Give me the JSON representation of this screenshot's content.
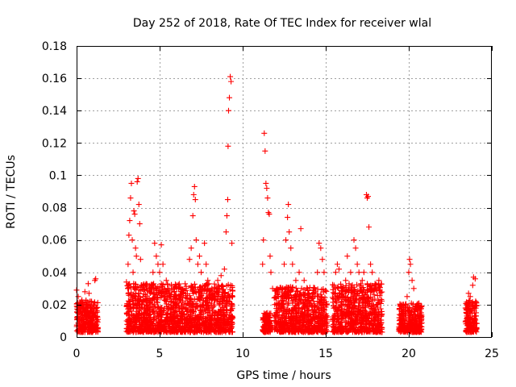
{
  "chart_data": {
    "type": "scatter",
    "title": "Day 252 of 2018, Rate Of TEC Index for receiver wlal",
    "xlabel": "GPS time / hours",
    "ylabel": "ROTI / TECUs",
    "xlim": [
      0,
      25
    ],
    "ylim": [
      0,
      0.18
    ],
    "x_ticks": [
      0,
      5,
      10,
      15,
      20,
      25
    ],
    "y_ticks": [
      0,
      0.02,
      0.04,
      0.06,
      0.08,
      0.1,
      0.12,
      0.14,
      0.16,
      0.18
    ],
    "x_tick_labels": [
      "0",
      "5",
      "10",
      "15",
      "20",
      "25"
    ],
    "y_tick_labels": [
      "0",
      "0.02",
      "0.04",
      "0.06",
      "0.08",
      "0.1",
      "0.12",
      "0.14",
      "0.16",
      "0.18"
    ],
    "grid": true,
    "marker": "+",
    "color": "#ff0000",
    "series": [
      {
        "name": "ROTI",
        "points": [
          [
            0.0,
            0.029
          ],
          [
            0.1,
            0.025
          ],
          [
            0.2,
            0.015
          ],
          [
            0.25,
            0.012
          ],
          [
            0.3,
            0.022
          ],
          [
            0.4,
            0.018
          ],
          [
            0.5,
            0.028
          ],
          [
            0.55,
            0.02
          ],
          [
            0.6,
            0.016
          ],
          [
            0.7,
            0.033
          ],
          [
            0.75,
            0.027
          ],
          [
            0.8,
            0.022
          ],
          [
            0.9,
            0.016
          ],
          [
            1.0,
            0.012
          ],
          [
            1.05,
            0.02
          ],
          [
            1.1,
            0.035
          ],
          [
            1.15,
            0.036
          ],
          [
            1.2,
            0.018
          ],
          [
            3.0,
            0.034
          ],
          [
            3.1,
            0.045
          ],
          [
            3.15,
            0.063
          ],
          [
            3.2,
            0.072
          ],
          [
            3.25,
            0.086
          ],
          [
            3.3,
            0.095
          ],
          [
            3.35,
            0.06
          ],
          [
            3.4,
            0.04
          ],
          [
            3.45,
            0.078
          ],
          [
            3.5,
            0.076
          ],
          [
            3.55,
            0.055
          ],
          [
            3.6,
            0.05
          ],
          [
            3.65,
            0.096
          ],
          [
            3.7,
            0.098
          ],
          [
            3.75,
            0.082
          ],
          [
            3.8,
            0.07
          ],
          [
            3.85,
            0.048
          ],
          [
            3.9,
            0.032
          ],
          [
            4.0,
            0.025
          ],
          [
            4.2,
            0.02
          ],
          [
            4.4,
            0.028
          ],
          [
            4.6,
            0.04
          ],
          [
            4.7,
            0.058
          ],
          [
            4.8,
            0.05
          ],
          [
            4.9,
            0.045
          ],
          [
            5.0,
            0.04
          ],
          [
            5.1,
            0.057
          ],
          [
            5.2,
            0.045
          ],
          [
            5.3,
            0.03
          ],
          [
            5.4,
            0.035
          ],
          [
            5.5,
            0.03
          ],
          [
            6.0,
            0.02
          ],
          [
            6.3,
            0.025
          ],
          [
            6.6,
            0.03
          ],
          [
            6.8,
            0.048
          ],
          [
            6.9,
            0.055
          ],
          [
            7.0,
            0.075
          ],
          [
            7.05,
            0.088
          ],
          [
            7.1,
            0.093
          ],
          [
            7.15,
            0.085
          ],
          [
            7.2,
            0.06
          ],
          [
            7.3,
            0.045
          ],
          [
            7.4,
            0.05
          ],
          [
            7.5,
            0.04
          ],
          [
            7.6,
            0.03
          ],
          [
            7.7,
            0.058
          ],
          [
            7.8,
            0.045
          ],
          [
            7.9,
            0.035
          ],
          [
            8.0,
            0.028
          ],
          [
            8.3,
            0.025
          ],
          [
            8.5,
            0.035
          ],
          [
            8.7,
            0.038
          ],
          [
            8.9,
            0.042
          ],
          [
            9.0,
            0.065
          ],
          [
            9.05,
            0.075
          ],
          [
            9.1,
            0.085
          ],
          [
            9.12,
            0.118
          ],
          [
            9.15,
            0.14
          ],
          [
            9.2,
            0.148
          ],
          [
            9.25,
            0.161
          ],
          [
            9.3,
            0.158
          ],
          [
            9.35,
            0.058
          ],
          [
            11.2,
            0.045
          ],
          [
            11.25,
            0.06
          ],
          [
            11.3,
            0.126
          ],
          [
            11.35,
            0.115
          ],
          [
            11.4,
            0.095
          ],
          [
            11.45,
            0.092
          ],
          [
            11.5,
            0.086
          ],
          [
            11.55,
            0.077
          ],
          [
            11.6,
            0.076
          ],
          [
            11.65,
            0.05
          ],
          [
            11.7,
            0.04
          ],
          [
            11.8,
            0.03
          ],
          [
            12.2,
            0.02
          ],
          [
            12.5,
            0.045
          ],
          [
            12.6,
            0.06
          ],
          [
            12.7,
            0.074
          ],
          [
            12.75,
            0.082
          ],
          [
            12.8,
            0.065
          ],
          [
            12.9,
            0.055
          ],
          [
            13.0,
            0.045
          ],
          [
            13.2,
            0.035
          ],
          [
            13.4,
            0.04
          ],
          [
            13.5,
            0.067
          ],
          [
            13.7,
            0.035
          ],
          [
            13.9,
            0.03
          ],
          [
            14.2,
            0.025
          ],
          [
            14.5,
            0.04
          ],
          [
            14.6,
            0.058
          ],
          [
            14.7,
            0.055
          ],
          [
            14.8,
            0.048
          ],
          [
            14.9,
            0.04
          ],
          [
            15.0,
            0.02
          ],
          [
            15.5,
            0.032
          ],
          [
            15.6,
            0.04
          ],
          [
            15.7,
            0.045
          ],
          [
            15.8,
            0.042
          ],
          [
            16.0,
            0.03
          ],
          [
            16.2,
            0.035
          ],
          [
            16.3,
            0.05
          ],
          [
            16.5,
            0.04
          ],
          [
            16.7,
            0.06
          ],
          [
            16.8,
            0.055
          ],
          [
            16.9,
            0.045
          ],
          [
            17.0,
            0.04
          ],
          [
            17.2,
            0.035
          ],
          [
            17.3,
            0.04
          ],
          [
            17.45,
            0.088
          ],
          [
            17.5,
            0.086
          ],
          [
            17.55,
            0.087
          ],
          [
            17.6,
            0.068
          ],
          [
            17.7,
            0.045
          ],
          [
            17.8,
            0.04
          ],
          [
            18.0,
            0.03
          ],
          [
            18.2,
            0.035
          ],
          [
            19.5,
            0.02
          ],
          [
            19.7,
            0.015
          ],
          [
            19.9,
            0.025
          ],
          [
            20.0,
            0.04
          ],
          [
            20.05,
            0.048
          ],
          [
            20.1,
            0.045
          ],
          [
            20.2,
            0.035
          ],
          [
            20.3,
            0.03
          ],
          [
            20.5,
            0.02
          ],
          [
            20.7,
            0.015
          ],
          [
            23.5,
            0.02
          ],
          [
            23.6,
            0.027
          ],
          [
            23.7,
            0.025
          ],
          [
            23.8,
            0.02
          ],
          [
            23.85,
            0.032
          ],
          [
            23.9,
            0.037
          ],
          [
            24.0,
            0.036
          ],
          [
            24.05,
            0.015
          ]
        ]
      }
    ],
    "dense_clusters": [
      [
        0.0,
        1.3,
        0.0,
        0.02
      ],
      [
        3.0,
        5.6,
        0.0,
        0.03
      ],
      [
        5.6,
        9.4,
        0.0,
        0.03
      ],
      [
        11.2,
        11.7,
        0.0,
        0.012
      ],
      [
        11.9,
        15.1,
        0.0,
        0.028
      ],
      [
        15.4,
        18.4,
        0.0,
        0.03
      ],
      [
        19.4,
        20.8,
        0.0,
        0.018
      ],
      [
        23.4,
        24.1,
        0.0,
        0.02
      ]
    ]
  }
}
